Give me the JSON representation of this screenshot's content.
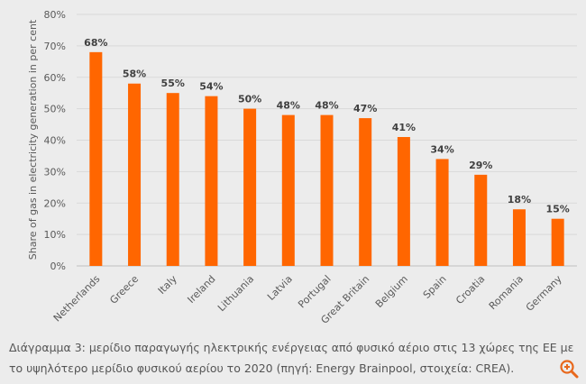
{
  "chart_data": {
    "type": "bar",
    "categories": [
      "Netherlands",
      "Greece",
      "Italy",
      "Ireland",
      "Lithuania",
      "Latvia",
      "Portugal",
      "Great Britain",
      "Belgium",
      "Spain",
      "Croatia",
      "Romania",
      "Germany"
    ],
    "values": [
      68,
      58,
      55,
      54,
      50,
      48,
      48,
      47,
      41,
      34,
      29,
      18,
      15
    ],
    "data_labels": [
      "68%",
      "58%",
      "55%",
      "54%",
      "50%",
      "48%",
      "48%",
      "47%",
      "41%",
      "34%",
      "29%",
      "18%",
      "15%"
    ],
    "yticks": [
      0,
      10,
      20,
      30,
      40,
      50,
      60,
      70,
      80
    ],
    "ytick_labels": [
      "0%",
      "10%",
      "20%",
      "30%",
      "40%",
      "50%",
      "60%",
      "70%",
      "80%"
    ],
    "ylim": [
      0,
      80
    ],
    "title": "",
    "xlabel": "",
    "ylabel": "Share of gas in electricity generation in per cent",
    "grid": true,
    "bar_color": "#ff6600"
  },
  "caption": "Διάγραμμα 3: μερίδιο παραγωγής ηλεκτρικής ενέργειας από φυσικό αέριο στις 13 χώρες της ΕΕ με το υψηλότερο μερίδιο φυσικού αερίου το 2020 (πηγή: Energy Brainpool, στοιχεία: CREA).",
  "zoom_icon_color": "#e8681c"
}
